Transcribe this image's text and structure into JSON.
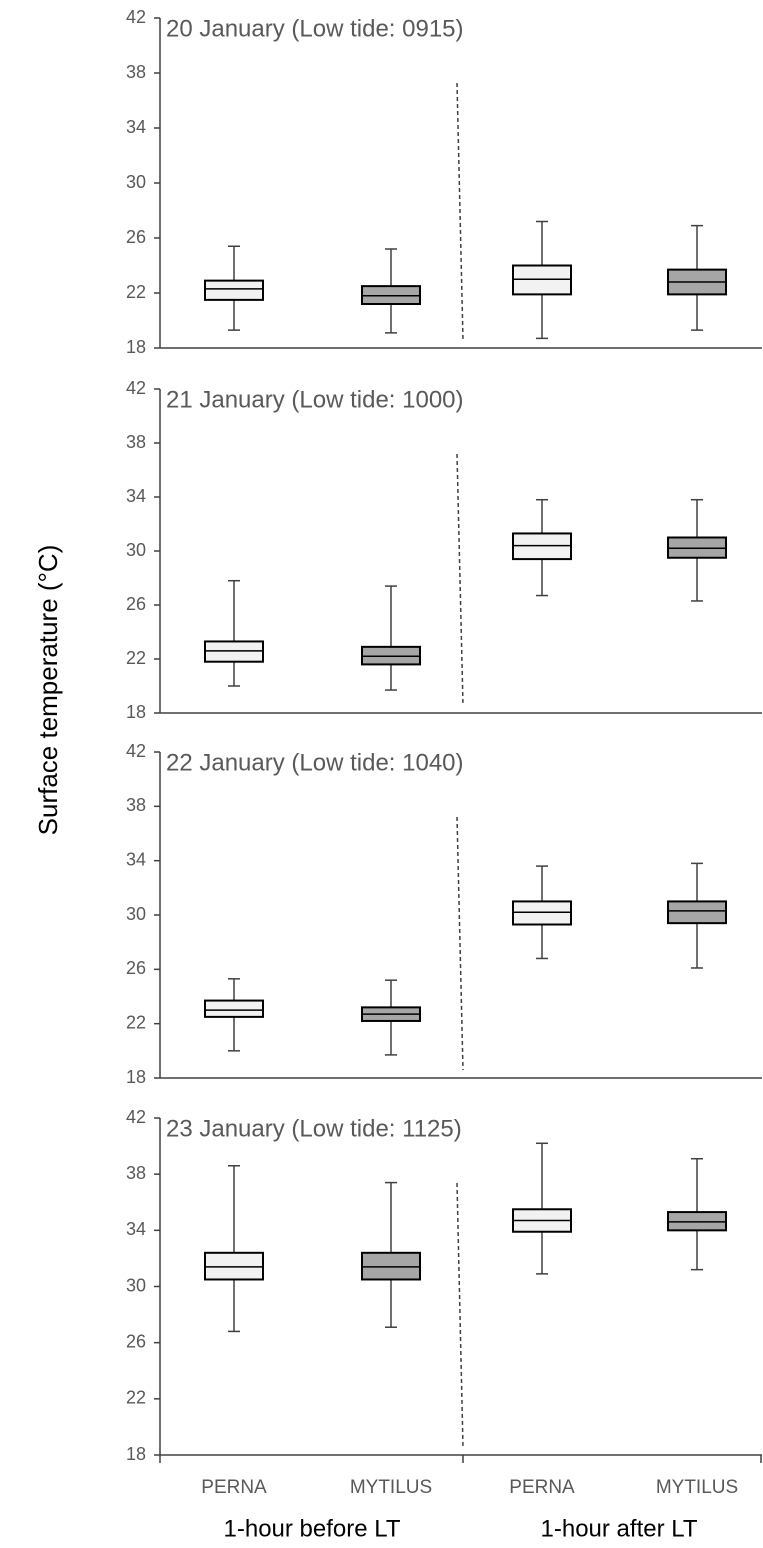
{
  "chart_data": {
    "type": "box",
    "ylabel": "Surface temperature (°C)",
    "ylim": [
      18,
      42
    ],
    "yticks": [
      18,
      22,
      26,
      30,
      34,
      38,
      42
    ],
    "categories": [
      "PERNA",
      "MYTILUS",
      "PERNA",
      "MYTILUS"
    ],
    "groups": [
      "1-hour before LT",
      "1-hour after LT"
    ],
    "colors": {
      "PERNA": "#f2f2f2",
      "MYTILUS": "#a6a6a6",
      "lines": "#404040"
    },
    "panels": [
      {
        "title": "20 January (Low tide: 0915)",
        "boxes": [
          {
            "category": "PERNA",
            "group": "1-hour before LT",
            "min": 19.3,
            "q1": 21.5,
            "median": 22.3,
            "q3": 22.9,
            "max": 25.4
          },
          {
            "category": "MYTILUS",
            "group": "1-hour before LT",
            "min": 19.1,
            "q1": 21.2,
            "median": 21.8,
            "q3": 22.5,
            "max": 25.2
          },
          {
            "category": "PERNA",
            "group": "1-hour after LT",
            "min": 18.7,
            "q1": 21.9,
            "median": 23.0,
            "q3": 24.0,
            "max": 27.2
          },
          {
            "category": "MYTILUS",
            "group": "1-hour after LT",
            "min": 19.3,
            "q1": 21.9,
            "median": 22.8,
            "q3": 23.7,
            "max": 26.9
          }
        ]
      },
      {
        "title": "21 January (Low tide: 1000)",
        "boxes": [
          {
            "category": "PERNA",
            "group": "1-hour before LT",
            "min": 20.0,
            "q1": 21.8,
            "median": 22.6,
            "q3": 23.3,
            "max": 27.8
          },
          {
            "category": "MYTILUS",
            "group": "1-hour before LT",
            "min": 19.7,
            "q1": 21.6,
            "median": 22.2,
            "q3": 22.9,
            "max": 27.4
          },
          {
            "category": "PERNA",
            "group": "1-hour after LT",
            "min": 26.7,
            "q1": 29.4,
            "median": 30.4,
            "q3": 31.3,
            "max": 33.8
          },
          {
            "category": "MYTILUS",
            "group": "1-hour after LT",
            "min": 26.3,
            "q1": 29.5,
            "median": 30.2,
            "q3": 31.0,
            "max": 33.8
          }
        ]
      },
      {
        "title": "22 January (Low tide: 1040)",
        "boxes": [
          {
            "category": "PERNA",
            "group": "1-hour before LT",
            "min": 20.0,
            "q1": 22.5,
            "median": 23.0,
            "q3": 23.7,
            "max": 25.3
          },
          {
            "category": "MYTILUS",
            "group": "1-hour before LT",
            "min": 19.7,
            "q1": 22.2,
            "median": 22.7,
            "q3": 23.2,
            "max": 25.2
          },
          {
            "category": "PERNA",
            "group": "1-hour after LT",
            "min": 26.8,
            "q1": 29.3,
            "median": 30.2,
            "q3": 31.0,
            "max": 33.6
          },
          {
            "category": "MYTILUS",
            "group": "1-hour after LT",
            "min": 26.1,
            "q1": 29.4,
            "median": 30.3,
            "q3": 31.0,
            "max": 33.8
          }
        ]
      },
      {
        "title": "23 January (Low tide: 1125)",
        "boxes": [
          {
            "category": "PERNA",
            "group": "1-hour before LT",
            "min": 26.8,
            "q1": 30.5,
            "median": 31.4,
            "q3": 32.4,
            "max": 38.6
          },
          {
            "category": "MYTILUS",
            "group": "1-hour before LT",
            "min": 27.1,
            "q1": 30.5,
            "median": 31.4,
            "q3": 32.4,
            "max": 37.4
          },
          {
            "category": "PERNA",
            "group": "1-hour after LT",
            "min": 30.9,
            "q1": 33.9,
            "median": 34.7,
            "q3": 35.5,
            "max": 40.2
          },
          {
            "category": "MYTILUS",
            "group": "1-hour after LT",
            "min": 31.2,
            "q1": 34.0,
            "median": 34.6,
            "q3": 35.3,
            "max": 39.1
          }
        ]
      }
    ]
  }
}
